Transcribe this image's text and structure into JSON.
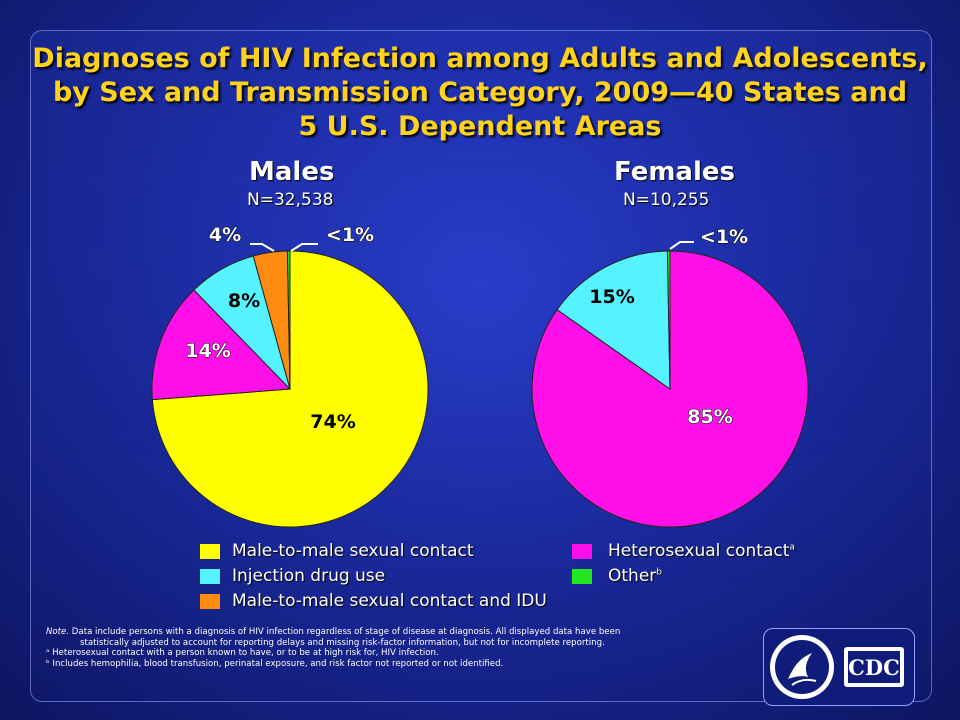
{
  "title_lines": [
    "Diagnoses of HIV Infection among Adults and Adolescents,",
    "by Sex and Transmission Category, 2009—40 States and",
    "5 U.S. Dependent Areas"
  ],
  "males": {
    "heading": "Males",
    "n": "N=32,538"
  },
  "females": {
    "heading": "Females",
    "n": "N=10,255"
  },
  "colors": {
    "msm": "#ffff00",
    "idu": "#55f2ff",
    "msm_idu": "#ff8c10",
    "hetero": "#ff10e8",
    "other": "#22e622"
  },
  "legend": {
    "msm": "Male-to-male sexual contact",
    "idu": "Injection drug use",
    "msm_idu": "Male-to-male sexual contact and IDU",
    "hetero": "Heterosexual contact",
    "hetero_sup": "a",
    "other": "Other",
    "other_sup": "b"
  },
  "chart_data": [
    {
      "type": "pie",
      "title": "Males",
      "subtitle": "N=32,538",
      "slices": [
        {
          "category": "Male-to-male sexual contact",
          "value": 74,
          "label": "74%"
        },
        {
          "category": "Heterosexual contact",
          "value": 14,
          "label": "14%"
        },
        {
          "category": "Injection drug use",
          "value": 8,
          "label": "8%"
        },
        {
          "category": "Male-to-male sexual contact and IDU",
          "value": 4,
          "label": "4%"
        },
        {
          "category": "Other",
          "value": 0.3,
          "label": "<1%"
        }
      ]
    },
    {
      "type": "pie",
      "title": "Females",
      "subtitle": "N=10,255",
      "slices": [
        {
          "category": "Heterosexual contact",
          "value": 85,
          "label": "85%"
        },
        {
          "category": "Injection drug use",
          "value": 15,
          "label": "15%"
        },
        {
          "category": "Other",
          "value": 0.3,
          "label": "<1%"
        }
      ]
    }
  ],
  "notes": {
    "note_prefix": "Note.",
    "note_text": " Data include persons with a diagnosis of HIV infection regardless of stage of disease at diagnosis. All displayed data have been",
    "note_text2": "statistically adjusted to account for reporting delays and missing risk-factor information, but not for incomplete reporting.",
    "a": "ᵃ Heterosexual contact with a person known to have, or to be at high risk for, HIV infection.",
    "b": "ᵇ Includes hemophilia, blood transfusion, perinatal exposure, and risk factor not reported or not identified."
  },
  "logo": {
    "text": "CDC"
  }
}
